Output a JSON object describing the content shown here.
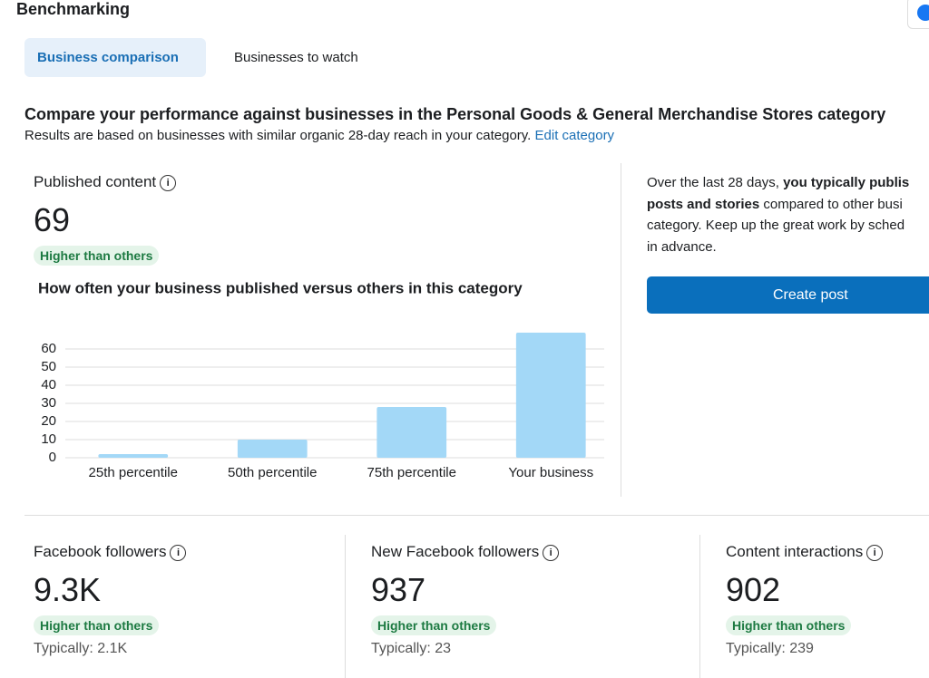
{
  "header": {
    "title": "Benchmarking"
  },
  "tabs": [
    "Business comparison",
    "Businesses to watch"
  ],
  "intro": {
    "heading": "Compare your performance against businesses in the Personal Goods & General Merchandise Stores category",
    "text": "Results are based on businesses with similar organic 28-day reach in your category.",
    "link": "Edit category"
  },
  "published": {
    "label": "Published content",
    "value": "69",
    "badge": "Higher than others"
  },
  "chart_data": {
    "type": "bar",
    "title": "How often your business published versus others in this category",
    "categories": [
      "25th percentile",
      "50th percentile",
      "75th percentile",
      "Your business"
    ],
    "values": [
      2,
      10,
      28,
      69
    ],
    "color": "#a3d8f7",
    "ylim": [
      0,
      70
    ],
    "yticks": [
      0,
      10,
      20,
      30,
      40,
      50,
      60
    ],
    "grid": true
  },
  "side": {
    "lines": [
      [
        "Over the last 28 days, ",
        "you typically publis"
      ],
      [
        "posts and stories",
        " compared to other busi"
      ],
      [
        "category. Keep up the great work by sched"
      ],
      [
        "in advance."
      ]
    ],
    "button": "Create post"
  },
  "metrics": [
    {
      "label": "Facebook followers",
      "value": "9.3K",
      "badge": "Higher than others",
      "typical": "Typically: 2.1K"
    },
    {
      "label": "New Facebook followers",
      "value": "937",
      "badge": "Higher than others",
      "typical": "Typically: 23"
    },
    {
      "label": "Content interactions",
      "value": "902",
      "badge": "Higher than others",
      "typical": "Typically: 239"
    }
  ]
}
